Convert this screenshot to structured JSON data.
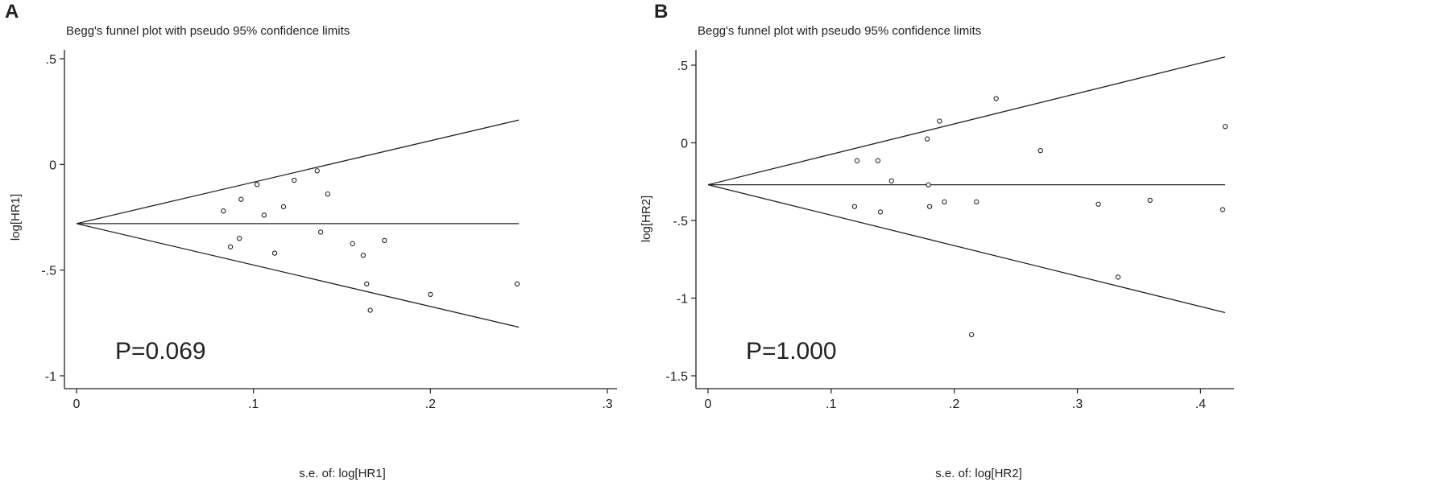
{
  "chart_data": [
    {
      "type": "scatter",
      "panel_label": "A",
      "title": "Begg's funnel plot with pseudo 95% confidence limits",
      "xlabel": "s.e. of: log[HR1]",
      "ylabel": "log[HR1]",
      "xlim": [
        0,
        0.3
      ],
      "ylim": [
        -1,
        0.5
      ],
      "x_ticks": [
        0,
        0.1,
        0.2,
        0.3
      ],
      "x_tick_labels": [
        "0",
        ".1",
        ".2",
        ".3"
      ],
      "y_ticks": [
        0.5,
        0,
        -0.5,
        -1
      ],
      "y_tick_labels": [
        ".5",
        "0",
        "-.5",
        "-1"
      ],
      "pooled_estimate": -0.28,
      "limits_max_se": 0.25,
      "annotation": "P=0.069",
      "points": [
        {
          "x": 0.083,
          "y": -0.22
        },
        {
          "x": 0.087,
          "y": -0.39
        },
        {
          "x": 0.092,
          "y": -0.35
        },
        {
          "x": 0.093,
          "y": -0.165
        },
        {
          "x": 0.102,
          "y": -0.095
        },
        {
          "x": 0.106,
          "y": -0.24
        },
        {
          "x": 0.112,
          "y": -0.42
        },
        {
          "x": 0.117,
          "y": -0.2
        },
        {
          "x": 0.123,
          "y": -0.075
        },
        {
          "x": 0.136,
          "y": -0.03
        },
        {
          "x": 0.138,
          "y": -0.32
        },
        {
          "x": 0.142,
          "y": -0.14
        },
        {
          "x": 0.156,
          "y": -0.375
        },
        {
          "x": 0.162,
          "y": -0.43
        },
        {
          "x": 0.164,
          "y": -0.565
        },
        {
          "x": 0.166,
          "y": -0.69
        },
        {
          "x": 0.174,
          "y": -0.36
        },
        {
          "x": 0.2,
          "y": -0.615
        },
        {
          "x": 0.249,
          "y": -0.565
        }
      ]
    },
    {
      "type": "scatter",
      "panel_label": "B",
      "title": "Begg's funnel plot with pseudo 95% confidence limits",
      "xlabel": "s.e. of: log[HR2]",
      "ylabel": "log[HR2]",
      "xlim": [
        0,
        0.42
      ],
      "ylim": [
        -1.5,
        0.5
      ],
      "x_ticks": [
        0,
        0.1,
        0.2,
        0.3,
        0.4
      ],
      "x_tick_labels": [
        "0",
        ".1",
        ".2",
        ".3",
        ".4"
      ],
      "y_ticks": [
        0.5,
        0,
        -0.5,
        -1,
        -1.5
      ],
      "y_tick_labels": [
        ".5",
        "0",
        "-.5",
        "-1",
        "-1.5"
      ],
      "pooled_estimate": -0.27,
      "limits_max_se": 0.42,
      "annotation": "P=1.000",
      "points": [
        {
          "x": 0.119,
          "y": -0.41
        },
        {
          "x": 0.121,
          "y": -0.115
        },
        {
          "x": 0.138,
          "y": -0.115
        },
        {
          "x": 0.14,
          "y": -0.445
        },
        {
          "x": 0.149,
          "y": -0.245
        },
        {
          "x": 0.178,
          "y": 0.025
        },
        {
          "x": 0.179,
          "y": -0.27
        },
        {
          "x": 0.18,
          "y": -0.41
        },
        {
          "x": 0.188,
          "y": 0.14
        },
        {
          "x": 0.192,
          "y": -0.38
        },
        {
          "x": 0.214,
          "y": -1.235
        },
        {
          "x": 0.218,
          "y": -0.38
        },
        {
          "x": 0.234,
          "y": 0.285
        },
        {
          "x": 0.27,
          "y": -0.05
        },
        {
          "x": 0.317,
          "y": -0.395
        },
        {
          "x": 0.333,
          "y": -0.865
        },
        {
          "x": 0.359,
          "y": -0.37
        },
        {
          "x": 0.418,
          "y": -0.43
        },
        {
          "x": 0.42,
          "y": 0.105
        }
      ]
    }
  ]
}
